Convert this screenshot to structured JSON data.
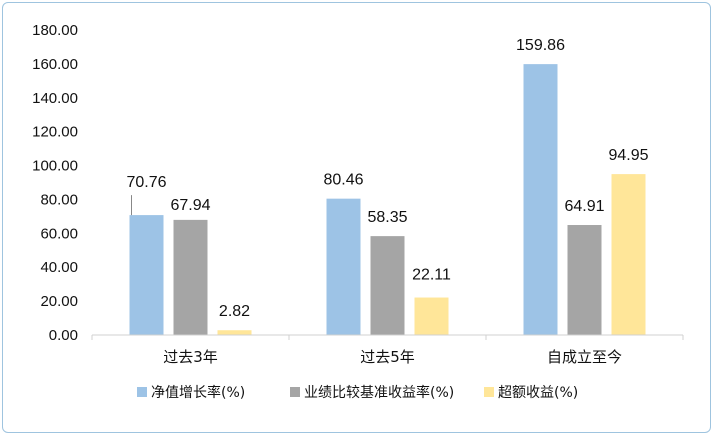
{
  "chart_data": {
    "type": "bar",
    "title": "",
    "xlabel": "",
    "ylabel": "",
    "categories": [
      "过去3年",
      "过去5年",
      "自成立至今"
    ],
    "series": [
      {
        "name": "净值增长率(%)",
        "values": [
          70.76,
          80.46,
          159.86
        ],
        "labels": [
          "70.76",
          "80.46",
          "159.86"
        ],
        "color": "#9dc3e6"
      },
      {
        "name": "业绩比较基准收益率(%)",
        "values": [
          67.94,
          58.35,
          64.91
        ],
        "labels": [
          "67.94",
          "58.35",
          "64.91"
        ],
        "color": "#a5a5a5"
      },
      {
        "name": "超额收益(%)",
        "values": [
          2.82,
          22.11,
          94.95
        ],
        "labels": [
          "2.82",
          "22.11",
          "94.95"
        ],
        "color": "#ffe699"
      }
    ],
    "ylim": [
      0,
      180
    ],
    "yticks": [
      "0.00",
      "20.00",
      "40.00",
      "60.00",
      "80.00",
      "100.00",
      "120.00",
      "140.00",
      "160.00",
      "180.00"
    ],
    "grid": false,
    "legend_position": "bottom"
  }
}
